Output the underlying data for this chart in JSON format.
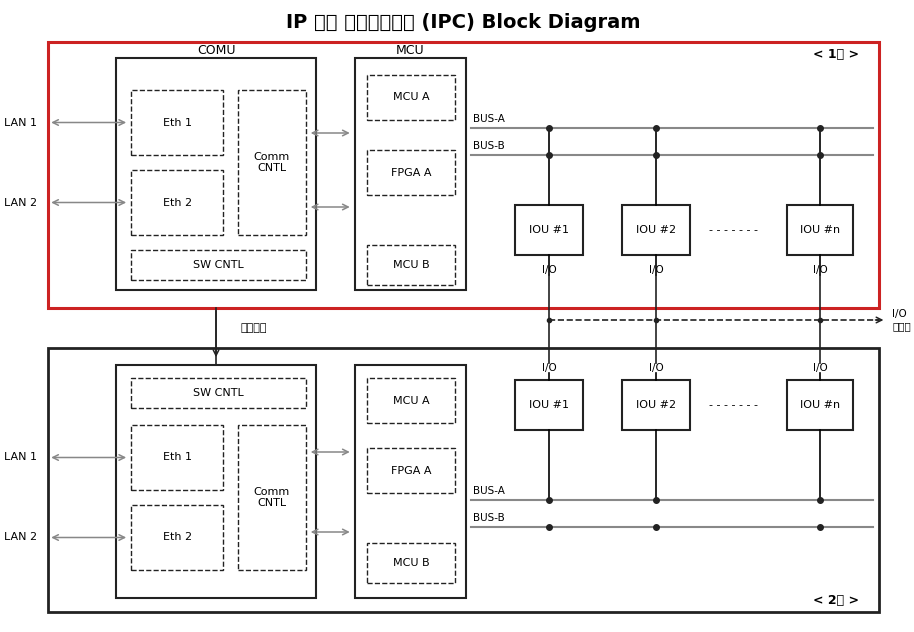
{
  "title": "IP 기반 전자연동장치 (IPC) Block Diagram",
  "layer1_label": "< 1계 >",
  "layer2_label": "< 2계 >",
  "comu_label": "COMU",
  "mcu_label": "MCU",
  "bus_a": "BUS-A",
  "bus_b": "BUS-B",
  "절체제어": "절체제어",
  "io_단자반": "I/O\n단자반",
  "gray": "#888888",
  "red": "#cc2222",
  "black": "#222222",
  "white": "#ffffff"
}
